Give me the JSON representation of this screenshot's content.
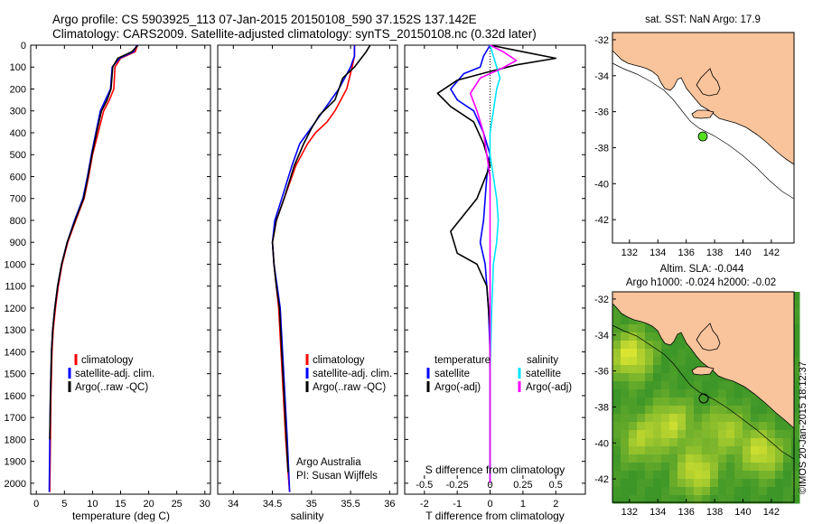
{
  "header": {
    "line1": "Argo profile: CS 5903925_113 07-Jan-2015 20150108_590 37.152S 137.142E",
    "line2": "Climatology: CARS2009. Satellite-adjusted climatology: synTS_20150108.nc (0.32d later)"
  },
  "colors": {
    "climatology": "#ff0000",
    "satellite": "#0000ff",
    "argo": "#000000",
    "satellite_salinity": "#00e5ff",
    "argo_salinity_adj": "#ff00ff",
    "land": "#f9c49b",
    "argo_marker": "#55dd22"
  },
  "chart_data": [
    {
      "id": "temperature",
      "type": "line",
      "xlabel": "temperature (deg C)",
      "ylabel": "",
      "xlim": [
        -1,
        31
      ],
      "ylim": [
        2050,
        0
      ],
      "xticks": [
        0,
        5,
        10,
        15,
        20,
        25,
        30
      ],
      "yticks": [
        0,
        100,
        200,
        300,
        400,
        500,
        600,
        700,
        800,
        900,
        1000,
        1100,
        1200,
        1300,
        1400,
        1500,
        1600,
        1700,
        1800,
        1900,
        2000
      ],
      "legend": [
        "climatology",
        "satellite-adj. clim.",
        "Argo(..raw -QC)"
      ],
      "series": [
        {
          "name": "climatology",
          "color": "#ff0000",
          "x": [
            18.0,
            17.6,
            15.0,
            14.0,
            13.8,
            13.0,
            12.0,
            11.0,
            10.0,
            9.3,
            8.5,
            7.0,
            5.6,
            4.6,
            3.9,
            3.4,
            3.0,
            2.8,
            2.6,
            2.5,
            2.4
          ],
          "y": [
            0,
            30,
            60,
            100,
            200,
            250,
            300,
            400,
            500,
            600,
            700,
            800,
            900,
            1000,
            1100,
            1200,
            1300,
            1400,
            1600,
            1800,
            2040
          ]
        },
        {
          "name": "satellite-adj. clim.",
          "color": "#0000ff",
          "x": [
            17.9,
            17.3,
            14.8,
            13.5,
            13.2,
            12.3,
            11.4,
            10.6,
            9.8,
            9.1,
            8.3,
            6.8,
            5.5,
            4.5,
            3.8,
            3.3,
            2.9,
            2.7,
            2.5,
            2.4,
            2.3
          ],
          "y": [
            0,
            30,
            60,
            100,
            200,
            250,
            300,
            400,
            500,
            600,
            700,
            800,
            900,
            1000,
            1100,
            1200,
            1300,
            1400,
            1600,
            1800,
            2040
          ]
        },
        {
          "name": "Argo(..raw -QC)",
          "color": "#000000",
          "x": [
            18.1,
            17.0,
            14.5,
            13.6,
            13.3,
            12.6,
            11.6,
            10.7,
            9.9,
            9.2,
            8.4,
            6.9,
            5.5,
            4.5,
            3.8,
            3.3,
            2.9,
            2.7,
            2.5,
            2.4
          ],
          "y": [
            0,
            30,
            60,
            100,
            200,
            250,
            300,
            400,
            500,
            600,
            700,
            800,
            900,
            1000,
            1100,
            1200,
            1300,
            1400,
            1600,
            1800
          ]
        }
      ]
    },
    {
      "id": "salinity",
      "type": "line",
      "xlabel": "salinity",
      "ylabel": "",
      "xlim": [
        33.8,
        36.1
      ],
      "ylim": [
        2050,
        0
      ],
      "xticks": [
        34,
        34.5,
        35,
        35.5,
        36
      ],
      "legend": [
        "climatology",
        "satellite-adj. clim.",
        "Argo(..raw -QC)"
      ],
      "annotation": [
        "Argo Australia",
        "PI: Susan Wijffels"
      ],
      "series": [
        {
          "name": "climatology",
          "color": "#ff0000",
          "x": [
            35.55,
            35.55,
            35.52,
            35.45,
            35.3,
            35.2,
            35.05,
            34.95,
            34.8,
            34.65,
            34.55,
            34.5,
            34.52,
            34.55,
            34.58,
            34.61,
            34.64,
            34.67,
            34.7,
            34.72
          ],
          "y": [
            0,
            50,
            100,
            200,
            300,
            350,
            400,
            450,
            550,
            700,
            800,
            900,
            1000,
            1100,
            1200,
            1400,
            1600,
            1800,
            1950,
            2040
          ]
        },
        {
          "name": "satellite-adj. clim.",
          "color": "#0000ff",
          "x": [
            35.55,
            35.55,
            35.5,
            35.35,
            35.15,
            35.05,
            34.95,
            34.85,
            34.75,
            34.62,
            34.53,
            34.5,
            34.52,
            34.56,
            34.6,
            34.63,
            34.66,
            34.69,
            34.71,
            34.72
          ],
          "y": [
            0,
            50,
            100,
            200,
            300,
            350,
            400,
            450,
            550,
            700,
            800,
            900,
            1000,
            1100,
            1200,
            1400,
            1600,
            1800,
            1950,
            2040
          ]
        },
        {
          "name": "Argo(..raw -QC)",
          "color": "#000000",
          "x": [
            35.75,
            35.7,
            35.55,
            35.4,
            35.3,
            35.1,
            35.0,
            34.9,
            34.78,
            34.65,
            34.55,
            34.5,
            34.52,
            34.55,
            34.59,
            34.62,
            34.65,
            34.68,
            34.7
          ],
          "y": [
            0,
            30,
            100,
            150,
            250,
            320,
            380,
            450,
            550,
            700,
            800,
            900,
            1000,
            1100,
            1200,
            1400,
            1600,
            1800,
            1950
          ]
        }
      ]
    },
    {
      "id": "difference",
      "type": "line",
      "xlabel": "T difference from climatology",
      "xlabel_top": "S difference from climatology",
      "xlim": [
        -2.6,
        2.9
      ],
      "ylim": [
        2050,
        0
      ],
      "xticks_T": [
        -2,
        -1,
        0,
        1,
        2
      ],
      "xticks_S": [
        "-0.5",
        "-0.25",
        "0",
        "0.25",
        "0.5"
      ],
      "xticks_S_values": [
        -0.5,
        -0.25,
        0,
        0.25,
        0.5
      ],
      "legend_left_title": "temperature",
      "legend_left": [
        "satellite",
        "Argo(-adj)"
      ],
      "legend_right_title": "salinity",
      "legend_right": [
        "satellite",
        "Argo(-adj)"
      ],
      "series": [
        {
          "name": "T satellite",
          "color": "#0000ff",
          "x": [
            0.0,
            -0.2,
            -0.3,
            -0.8,
            -1.2,
            -1.0,
            -0.5,
            -0.2,
            0.0,
            -0.1,
            -0.2,
            -0.3,
            -0.15,
            -0.1,
            -0.05,
            0.0,
            0.0,
            0.0
          ],
          "y": [
            0,
            50,
            100,
            130,
            200,
            250,
            300,
            400,
            500,
            600,
            800,
            900,
            1000,
            1100,
            1200,
            1400,
            1700,
            2000
          ]
        },
        {
          "name": "T Argo(-adj)",
          "color": "#000000",
          "x": [
            0.0,
            1.0,
            2.0,
            0.8,
            0.0,
            -1.0,
            -1.6,
            -1.2,
            -0.5,
            -0.2,
            0.0,
            -0.4,
            -1.2,
            -1.0,
            -0.4,
            -0.1,
            0.0,
            0.0,
            0.0
          ],
          "y": [
            0,
            30,
            60,
            90,
            120,
            160,
            220,
            280,
            350,
            450,
            550,
            700,
            850,
            950,
            1000,
            1100,
            1300,
            1600,
            2000
          ]
        },
        {
          "name": "S satellite",
          "color": "#00e5ff",
          "x": [
            0.0,
            0.1,
            0.2,
            0.3,
            0.2,
            0.1,
            0.0,
            0.0,
            0.1,
            0.2,
            0.25,
            0.2,
            0.1,
            0.05,
            0.0,
            0.0
          ],
          "y": [
            0,
            50,
            100,
            150,
            200,
            300,
            400,
            500,
            600,
            700,
            800,
            900,
            1000,
            1200,
            1500,
            2000
          ]
        },
        {
          "name": "S Argo(-adj)",
          "color": "#ff00ff",
          "x": [
            0.0,
            0.4,
            0.8,
            0.3,
            -0.3,
            -0.6,
            -0.4,
            -0.2,
            0.0,
            0.0,
            0.0,
            0.0,
            0.0
          ],
          "y": [
            0,
            30,
            70,
            110,
            150,
            220,
            300,
            400,
            600,
            800,
            1000,
            1500,
            2000
          ]
        }
      ]
    },
    {
      "id": "map-sst",
      "type": "map",
      "title": "sat. SST: NaN Argo: 17.9",
      "xticks": [
        132,
        134,
        136,
        138,
        140,
        142
      ],
      "yticks": [
        -32,
        -34,
        -36,
        -38,
        -40,
        -42
      ],
      "argo_position": {
        "lon": 137.142,
        "lat": -37.152
      }
    },
    {
      "id": "map-sla",
      "type": "map",
      "title_lines": [
        "Altim. SLA: -0.044",
        "Argo h1000: -0.024 h2000: -0.02"
      ],
      "xticks": [
        132,
        134,
        136,
        138,
        140,
        142
      ],
      "yticks": [
        -32,
        -34,
        -36,
        -38,
        -40,
        -42
      ],
      "argo_position": {
        "lon": 137.142,
        "lat": -37.152
      }
    }
  ],
  "side_note": "©IMOS 20-Jan-2015 18:12:37"
}
